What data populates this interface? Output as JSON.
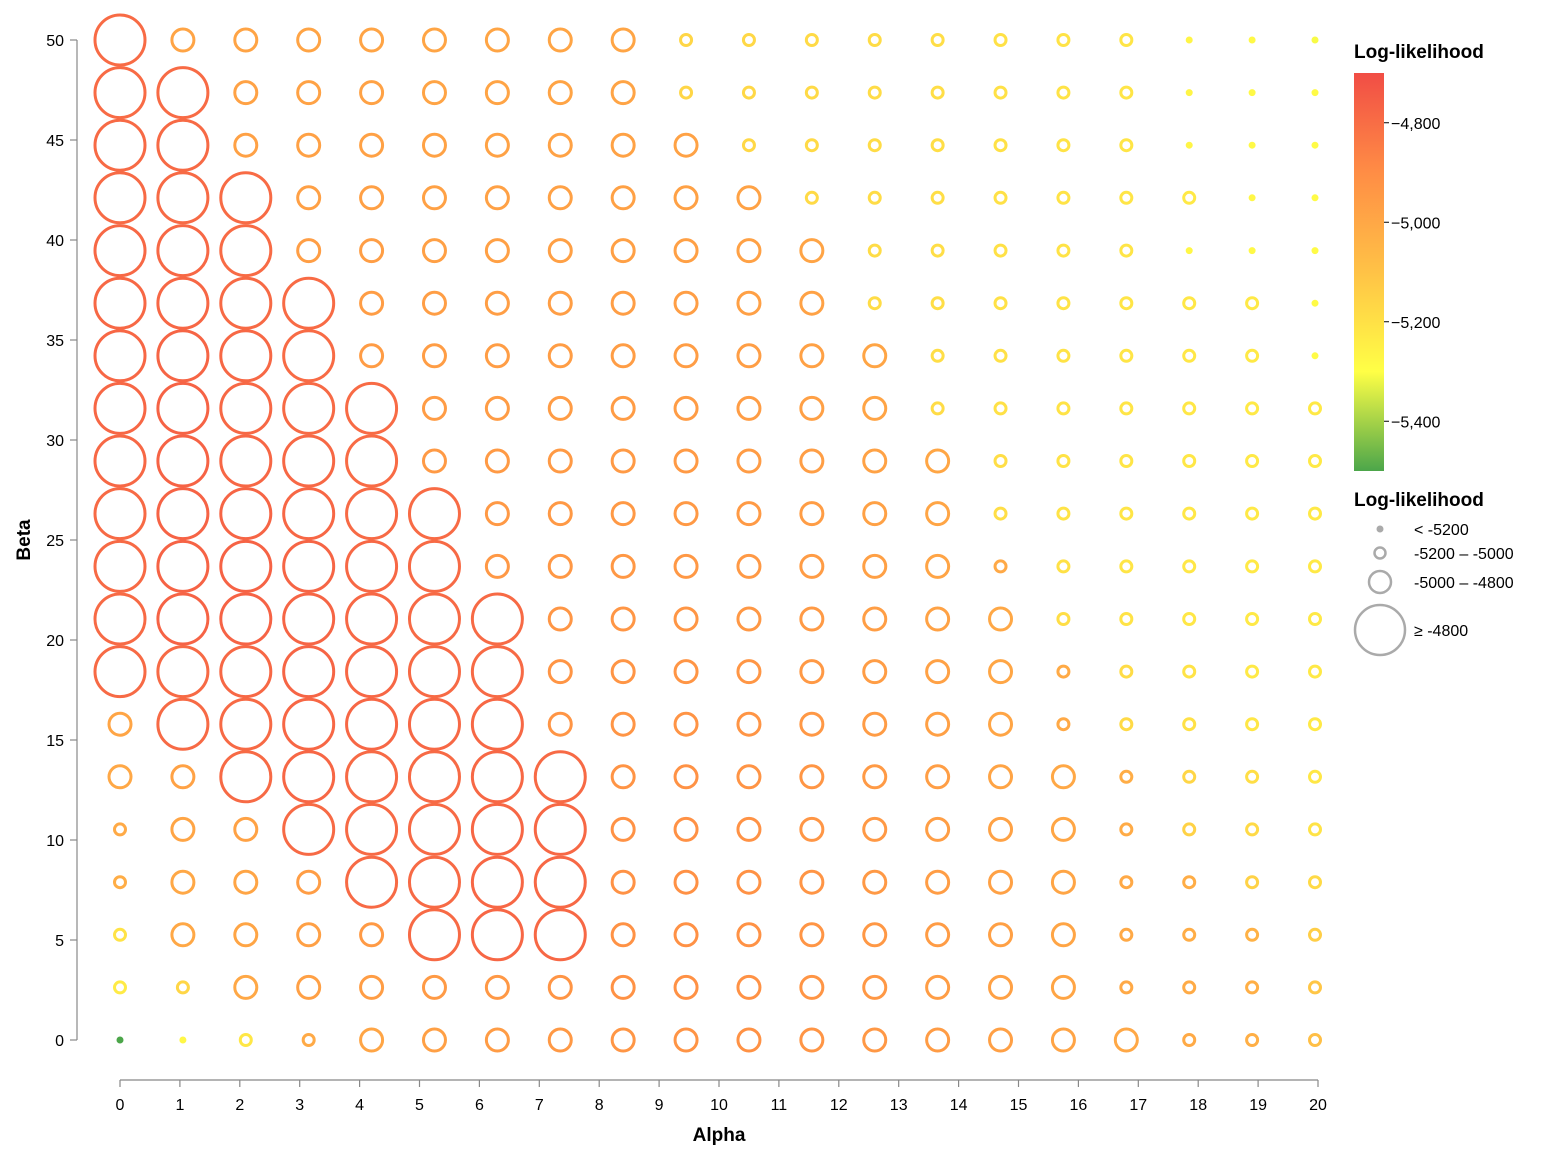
{
  "chart_data": {
    "type": "scatter",
    "xlabel": "Alpha",
    "ylabel": "Beta",
    "x_ticks": [
      "0",
      "1",
      "2",
      "3",
      "4",
      "5",
      "6",
      "7",
      "8",
      "9",
      "10",
      "11",
      "12",
      "13",
      "14",
      "15",
      "16",
      "17",
      "18",
      "19",
      "20"
    ],
    "y_ticks": [
      "0",
      "5",
      "10",
      "15",
      "20",
      "25",
      "30",
      "35",
      "40",
      "45",
      "50"
    ],
    "xlim": [
      0,
      20
    ],
    "ylim": [
      0,
      50
    ],
    "grid": false,
    "color_legend": {
      "title": "Log-likelihood",
      "tick_labels": [
        "−4,800",
        "−5,000",
        "−5,200",
        "−5,400"
      ],
      "tick_values": [
        -4800,
        -5000,
        -5200,
        -5400
      ],
      "domain": [
        -5500,
        -4700
      ],
      "gradient_colors": [
        "#f14d45",
        "#ff8d45",
        "#ffc246",
        "#ffff46",
        "#4ca64a"
      ]
    },
    "size_legend": {
      "title": "Log-likelihood",
      "items": [
        {
          "label": "< -5200",
          "level": 0
        },
        {
          "label": "-5200 – -5000",
          "level": 1
        },
        {
          "label": "-5000 – -4800",
          "level": 2
        },
        {
          "label": "≥ -4800",
          "level": 3
        }
      ]
    },
    "alpha_values": [
      0.0,
      1.05,
      2.1,
      3.15,
      4.2,
      5.25,
      6.3,
      7.35,
      8.4,
      9.45,
      10.5,
      11.55,
      12.6,
      13.65,
      14.7,
      15.75,
      16.8,
      17.85,
      18.9,
      19.95
    ],
    "beta_values": [
      0.0,
      2.63,
      5.26,
      7.89,
      10.53,
      13.16,
      15.79,
      18.42,
      21.05,
      23.68,
      26.32,
      28.95,
      31.58,
      34.21,
      36.84,
      39.47,
      42.11,
      44.74,
      47.37,
      50.0
    ],
    "note_rows": "loglik rows ordered by beta index 0..19, columns by alpha index 0..19",
    "loglik": [
      [
        -5500,
        -5230,
        -5190,
        -5010,
        -4990,
        -4970,
        -4955,
        -4945,
        -4935,
        -4925,
        -4920,
        -4930,
        -4940,
        -4955,
        -4970,
        -4985,
        -5000,
        -5010,
        -5030,
        -5090
      ],
      [
        -5200,
        -5150,
        -5000,
        -4970,
        -4960,
        -4950,
        -4940,
        -4930,
        -4920,
        -4915,
        -4920,
        -4930,
        -4940,
        -4960,
        -4975,
        -4990,
        -5005,
        -5015,
        -5030,
        -5110
      ],
      [
        -5180,
        -5000,
        -4990,
        -4970,
        -4950,
        -4790,
        -4780,
        -4785,
        -4920,
        -4915,
        -4920,
        -4930,
        -4940,
        -4955,
        -4970,
        -4990,
        -5005,
        -5020,
        -5040,
        -5130
      ],
      [
        -5020,
        -5000,
        -4990,
        -4960,
        -4790,
        -4790,
        -4780,
        -4785,
        -4920,
        -4915,
        -4920,
        -4930,
        -4945,
        -4960,
        -4975,
        -4990,
        -5005,
        -5020,
        -5140,
        -5160
      ],
      [
        -5010,
        -4990,
        -4980,
        -4790,
        -4790,
        -4790,
        -4780,
        -4785,
        -4920,
        -4915,
        -4920,
        -4935,
        -4945,
        -4965,
        -4980,
        -4995,
        -5015,
        -5140,
        -5160,
        -5180
      ],
      [
        -5000,
        -4980,
        -4790,
        -4780,
        -4790,
        -4790,
        -4785,
        -4790,
        -4925,
        -4920,
        -4925,
        -4935,
        -4950,
        -4965,
        -4985,
        -5000,
        -5020,
        -5150,
        -5170,
        -5190
      ],
      [
        -4990,
        -4790,
        -4790,
        -4780,
        -4780,
        -4785,
        -4785,
        -4930,
        -4930,
        -4925,
        -4930,
        -4940,
        -4955,
        -4970,
        -4990,
        -5005,
        -5160,
        -5175,
        -5190,
        -5195
      ],
      [
        -4790,
        -4790,
        -4785,
        -4775,
        -4780,
        -4790,
        -4790,
        -4930,
        -4930,
        -4930,
        -4935,
        -4945,
        -4960,
        -4975,
        -4995,
        -5010,
        -5165,
        -5180,
        -5195,
        -5195
      ],
      [
        -4790,
        -4770,
        -4770,
        -4775,
        -4785,
        -4790,
        -4790,
        -4935,
        -4935,
        -4935,
        -4940,
        -4950,
        -4965,
        -4980,
        -5000,
        -5170,
        -5180,
        -5190,
        -5195,
        -5195
      ],
      [
        -4790,
        -4770,
        -4770,
        -4775,
        -4785,
        -4790,
        -4940,
        -4940,
        -4940,
        -4940,
        -4945,
        -4955,
        -4970,
        -4985,
        -5005,
        -5175,
        -5185,
        -5190,
        -5195,
        -5195
      ],
      [
        -4790,
        -4770,
        -4775,
        -4780,
        -4790,
        -4795,
        -4945,
        -4945,
        -4945,
        -4945,
        -4950,
        -4960,
        -4975,
        -4990,
        -5170,
        -5180,
        -5185,
        -5190,
        -5195,
        -5195
      ],
      [
        -4785,
        -4770,
        -4780,
        -4785,
        -4795,
        -4950,
        -4950,
        -4950,
        -4950,
        -4950,
        -4955,
        -4965,
        -4980,
        -4995,
        -5170,
        -5180,
        -5185,
        -5190,
        -5195,
        -5195
      ],
      [
        -4780,
        -4770,
        -4785,
        -4790,
        -4795,
        -4955,
        -4955,
        -4955,
        -4955,
        -4955,
        -4960,
        -4970,
        -4985,
        -5165,
        -5175,
        -5180,
        -5185,
        -5190,
        -5195,
        -5195
      ],
      [
        -4780,
        -4775,
        -4785,
        -4795,
        -4955,
        -4960,
        -4960,
        -4960,
        -4960,
        -4960,
        -4965,
        -4975,
        -4990,
        -5170,
        -5175,
        -5180,
        -5185,
        -5190,
        -5195,
        -5240
      ],
      [
        -4785,
        -4780,
        -4790,
        -4795,
        -4960,
        -4965,
        -4965,
        -4965,
        -4965,
        -4965,
        -4970,
        -4980,
        -5165,
        -5170,
        -5175,
        -5180,
        -5185,
        -5190,
        -5195,
        -5240
      ],
      [
        -4785,
        -4785,
        -4795,
        -4965,
        -4965,
        -4970,
        -4970,
        -4970,
        -4970,
        -4970,
        -4975,
        -4985,
        -5165,
        -5170,
        -5175,
        -5180,
        -5185,
        -5230,
        -5235,
        -5240
      ],
      [
        -4790,
        -4790,
        -4795,
        -4970,
        -4970,
        -4975,
        -4975,
        -4975,
        -4975,
        -4975,
        -4980,
        -5160,
        -5165,
        -5170,
        -5175,
        -5180,
        -5185,
        -5195,
        -5230,
        -5240
      ],
      [
        -4790,
        -4790,
        -4975,
        -4975,
        -4975,
        -4980,
        -4980,
        -4980,
        -4980,
        -4980,
        -5155,
        -5160,
        -5165,
        -5170,
        -5175,
        -5180,
        -5185,
        -5225,
        -5235,
        -5240
      ],
      [
        -4795,
        -4795,
        -4980,
        -4980,
        -4980,
        -4985,
        -4985,
        -4985,
        -4985,
        -5150,
        -5155,
        -5160,
        -5165,
        -5170,
        -5175,
        -5180,
        -5185,
        -5225,
        -5235,
        -5240
      ],
      [
        -4795,
        -4985,
        -4985,
        -4985,
        -4985,
        -4990,
        -4990,
        -4990,
        -4990,
        -5150,
        -5155,
        -5160,
        -5165,
        -5170,
        -5175,
        -5180,
        -5185,
        -5225,
        -5235,
        -5260
      ]
    ]
  }
}
